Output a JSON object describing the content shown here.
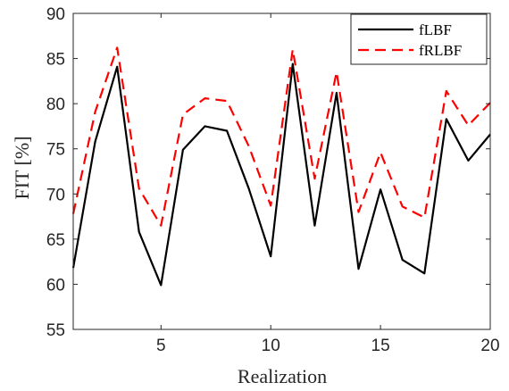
{
  "chart_data": {
    "type": "line",
    "xlabel": "Realization",
    "ylabel": "FIT [%]",
    "xlim": [
      1,
      20
    ],
    "ylim": [
      55,
      90
    ],
    "x_ticks": [
      5,
      10,
      15,
      20
    ],
    "y_ticks": [
      55,
      60,
      65,
      70,
      75,
      80,
      85,
      90
    ],
    "x": [
      1,
      2,
      3,
      4,
      5,
      6,
      7,
      8,
      9,
      10,
      11,
      12,
      13,
      14,
      15,
      16,
      17,
      18,
      19,
      20
    ],
    "legend_position": "top-right",
    "series": [
      {
        "name": "fLBF",
        "color": "#000000",
        "style": "solid",
        "values": [
          61.8,
          75.8,
          84.1,
          65.8,
          59.9,
          74.9,
          77.5,
          77.0,
          70.6,
          63.1,
          84.4,
          66.5,
          81.2,
          61.7,
          70.5,
          62.7,
          61.2,
          78.3,
          73.7,
          76.6
        ]
      },
      {
        "name": "fRLBF",
        "color": "#ff0000",
        "style": "dashed",
        "values": [
          67.8,
          79.1,
          86.2,
          70.6,
          66.5,
          78.8,
          80.6,
          80.3,
          75.3,
          68.7,
          86.0,
          71.7,
          83.5,
          68.0,
          74.6,
          68.6,
          67.4,
          81.4,
          77.6,
          80.1
        ]
      }
    ]
  }
}
